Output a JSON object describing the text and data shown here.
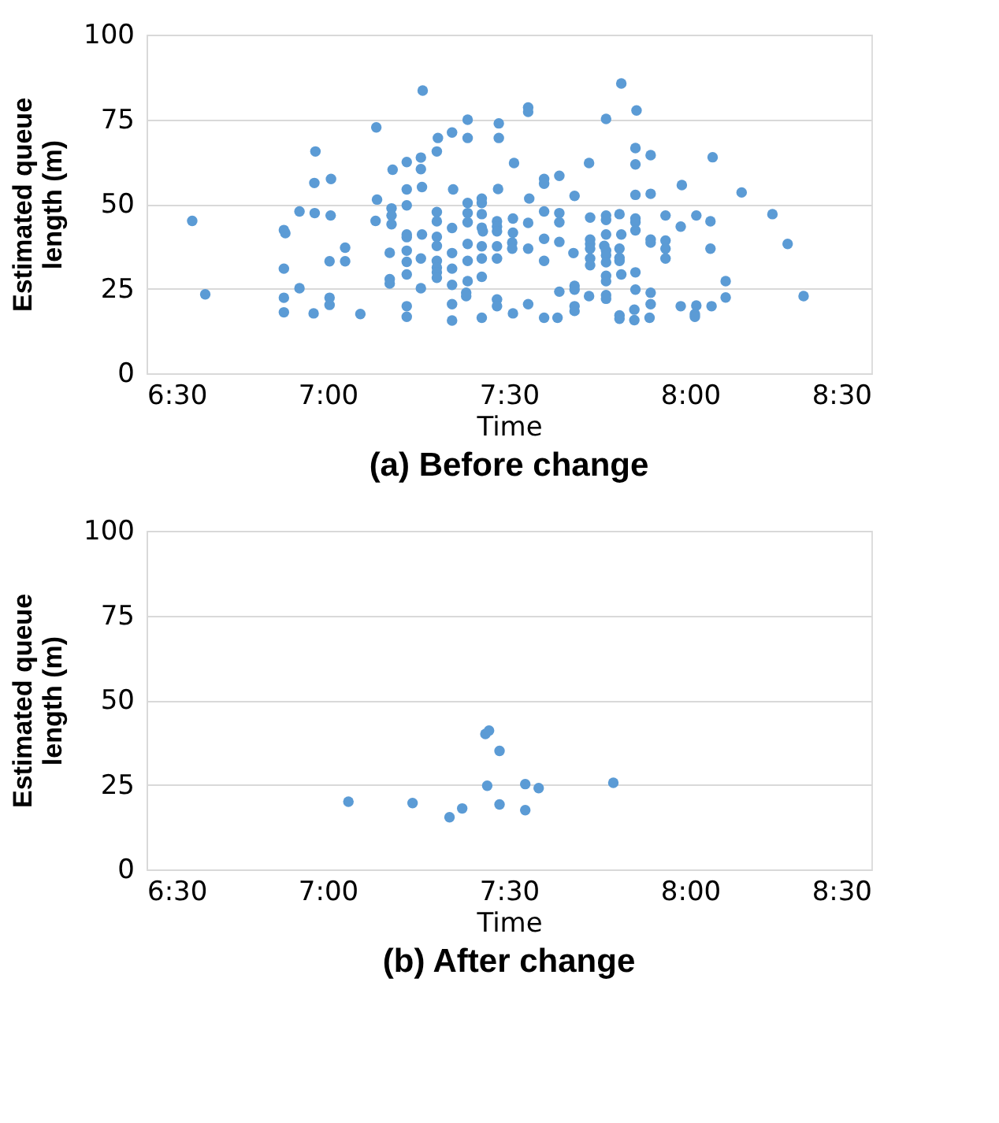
{
  "chart_data": [
    {
      "type": "scatter",
      "title": "(a) Before change",
      "xlabel": "Time",
      "ylabel": "Estimated queue length (m)",
      "marker": "circle",
      "grid": "y",
      "xlim": [
        6.5,
        8.5
      ],
      "xticks": [
        {
          "value": 6.5,
          "label": "6:30"
        },
        {
          "value": 7,
          "label": "7:00"
        },
        {
          "value": 7.5,
          "label": "7:30"
        },
        {
          "value": 8,
          "label": "8:00"
        },
        {
          "value": 8.5,
          "label": "8:30"
        }
      ],
      "ylim": [
        0,
        100
      ],
      "yticks": [
        0,
        25,
        50,
        75,
        100
      ],
      "series": [
        {
          "color": "#5b9bd5",
          "x": [
            6.626,
            6.662,
            6.966,
            6.963,
            7.009,
            6.922,
            6.964,
            7.008,
            6.879,
            6.883,
            6.879,
            7.048,
            7.005,
            7.048,
            6.922,
            6.879,
            6.879,
            6.961,
            7.005,
            7.005,
            7.09,
            7.134,
            7.136,
            7.132,
            7.262,
            7.176,
            7.176,
            7.176,
            7.171,
            7.171,
            7.171,
            7.179,
            7.218,
            7.218,
            7.218,
            7.257,
            7.257,
            7.26,
            7.301,
            7.304,
            7.343,
            7.386,
            7.386,
            7.346,
            7.301,
            7.301,
            7.218,
            7.218,
            7.26,
            7.301,
            7.301,
            7.218,
            7.218,
            7.218,
            7.257,
            7.257,
            7.301,
            7.301,
            7.301,
            7.301,
            7.343,
            7.343,
            7.343,
            7.343,
            7.343,
            7.343,
            7.218,
            7.218,
            7.386,
            7.386,
            7.386,
            7.386,
            7.386,
            7.386,
            7.382,
            7.382,
            7.425,
            7.425,
            7.425,
            7.425,
            7.428,
            7.425,
            7.425,
            7.425,
            7.425,
            7.472,
            7.472,
            7.47,
            7.467,
            7.467,
            7.467,
            7.467,
            7.467,
            7.467,
            7.467,
            7.514,
            7.511,
            7.511,
            7.509,
            7.509,
            7.511,
            7.553,
            7.553,
            7.556,
            7.553,
            7.553,
            7.553,
            7.597,
            7.597,
            7.639,
            7.597,
            7.597,
            7.597,
            7.597,
            7.639,
            7.639,
            7.639,
            7.634,
            7.639,
            7.681,
            7.678,
            7.681,
            7.681,
            7.681,
            7.681,
            7.721,
            7.724,
            7.724,
            7.724,
            7.724,
            7.724,
            7.724,
            7.721,
            7.768,
            7.768,
            7.768,
            7.768,
            7.763,
            7.768,
            7.768,
            7.768,
            7.768,
            7.768,
            7.768,
            7.768,
            7.81,
            7.852,
            7.849,
            7.849,
            7.849,
            7.891,
            7.891,
            7.805,
            7.849,
            7.849,
            7.849,
            7.81,
            7.805,
            7.805,
            7.805,
            7.81,
            7.849,
            7.849,
            7.805,
            7.805,
            7.846,
            7.846,
            7.891,
            7.891,
            7.888,
            7.891,
            7.891,
            7.932,
            7.932,
            7.932,
            7.932,
            7.974,
            7.974,
            7.977,
            8.017,
            8.017,
            8.013,
            8.013,
            8.056,
            8.056,
            8.059,
            8.062,
            8.098,
            8.098,
            8.142,
            8.227,
            8.269,
            8.313
          ],
          "values": [
            45.0,
            23.3,
            65.5,
            56.2,
            57.4,
            47.8,
            47.3,
            46.6,
            42.3,
            41.4,
            30.9,
            37.1,
            33.1,
            33.1,
            25.1,
            22.3,
            18.0,
            17.7,
            22.3,
            20.2,
            17.5,
            72.6,
            51.3,
            45.0,
            83.5,
            48.7,
            46.6,
            44.0,
            35.6,
            27.8,
            26.5,
            60.1,
            62.4,
            54.3,
            49.6,
            63.7,
            60.3,
            55.0,
            65.5,
            69.5,
            71.1,
            74.9,
            69.5,
            54.3,
            47.6,
            44.9,
            41.0,
            40.2,
            41.0,
            40.3,
            37.6,
            36.2,
            32.9,
            29.2,
            33.9,
            25.1,
            33.2,
            31.2,
            29.8,
            28.2,
            42.9,
            35.5,
            30.9,
            26.1,
            20.4,
            15.6,
            19.8,
            16.7,
            50.3,
            47.3,
            44.6,
            38.2,
            33.2,
            27.2,
            23.8,
            22.8,
            51.6,
            50.3,
            47.0,
            43.0,
            41.9,
            37.5,
            33.9,
            28.5,
            16.4,
            73.8,
            69.5,
            54.4,
            44.9,
            43.3,
            41.9,
            37.5,
            33.9,
            21.8,
            19.8,
            62.1,
            45.7,
            41.5,
            38.6,
            36.8,
            17.7,
            78.5,
            77.2,
            51.6,
            44.4,
            36.8,
            20.4,
            57.4,
            56.0,
            58.3,
            47.8,
            39.7,
            33.2,
            16.4,
            47.3,
            44.6,
            38.8,
            16.4,
            24.1,
            52.4,
            35.5,
            25.8,
            24.7,
            19.8,
            18.4,
            62.1,
            46.0,
            39.5,
            38.2,
            36.8,
            33.9,
            31.9,
            22.8,
            75.1,
            46.6,
            45.3,
            41.0,
            37.6,
            36.2,
            34.8,
            32.8,
            28.8,
            27.2,
            23.1,
            22.0,
            85.6,
            77.6,
            66.5,
            61.7,
            52.7,
            64.4,
            53.0,
            47.0,
            45.7,
            44.6,
            42.2,
            41.0,
            36.8,
            34.1,
            33.2,
            29.2,
            29.8,
            24.7,
            17.1,
            16.1,
            18.8,
            15.7,
            23.8,
            20.4,
            16.4,
            39.5,
            38.6,
            46.6,
            39.2,
            36.8,
            33.9,
            43.3,
            19.8,
            55.6,
            46.6,
            20.0,
            17.5,
            16.7,
            44.9,
            36.8,
            19.8,
            63.8,
            27.2,
            22.4,
            53.4,
            47.0,
            38.2,
            22.8
          ]
        }
      ]
    },
    {
      "type": "scatter",
      "title": "(b) After change",
      "xlabel": "Time",
      "ylabel": "Estimated queue length (m)",
      "marker": "circle",
      "grid": "y",
      "xlim": [
        6.5,
        8.5
      ],
      "xticks": [
        {
          "value": 6.5,
          "label": "6:30"
        },
        {
          "value": 7,
          "label": "7:00"
        },
        {
          "value": 7.5,
          "label": "7:30"
        },
        {
          "value": 8,
          "label": "8:00"
        },
        {
          "value": 8.5,
          "label": "8:30"
        }
      ],
      "ylim": [
        0,
        100
      ],
      "yticks": [
        0,
        25,
        50,
        75,
        100
      ],
      "series": [
        {
          "color": "#5b9bd5",
          "x": [
            7.057,
            7.234,
            7.336,
            7.371,
            7.435,
            7.445,
            7.44,
            7.474,
            7.474,
            7.545,
            7.545,
            7.582,
            7.788
          ],
          "values": [
            20.0,
            19.6,
            15.4,
            18.0,
            40.0,
            41.0,
            24.7,
            35.0,
            19.2,
            25.2,
            17.5,
            24.0,
            25.6
          ]
        }
      ]
    }
  ]
}
